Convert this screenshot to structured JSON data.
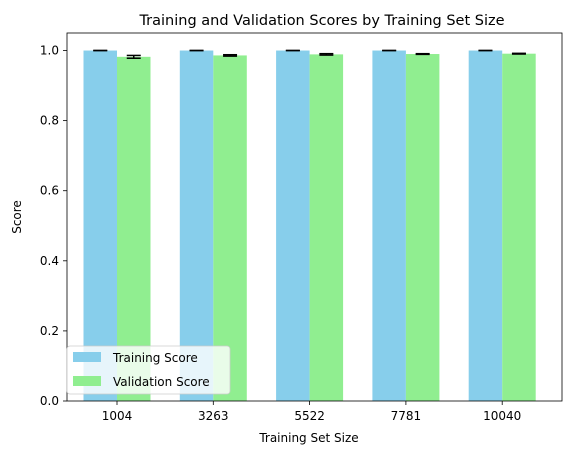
{
  "chart_data": {
    "type": "bar",
    "title": "Training and Validation Scores by Training Set Size",
    "xlabel": "Training Set Size",
    "ylabel": "Score",
    "categories": [
      "1004",
      "3263",
      "5522",
      "7781",
      "10040"
    ],
    "ylim": [
      0,
      1.05
    ],
    "yticks": [
      "0.0",
      "0.2",
      "0.4",
      "0.6",
      "0.8",
      "1.0"
    ],
    "grid": false,
    "legend_position": "lower-left",
    "series": [
      {
        "name": "Training Score",
        "color": "#87ceeb",
        "values": [
          1.0,
          1.0,
          1.0,
          1.0,
          1.0
        ],
        "errors": [
          0.0,
          0.0,
          0.0,
          0.0,
          0.0
        ]
      },
      {
        "name": "Validation Score",
        "color": "#90ee90",
        "values": [
          0.982,
          0.986,
          0.989,
          0.99,
          0.991
        ],
        "errors": [
          0.004,
          0.002,
          0.002,
          0.001,
          0.001
        ]
      }
    ]
  }
}
